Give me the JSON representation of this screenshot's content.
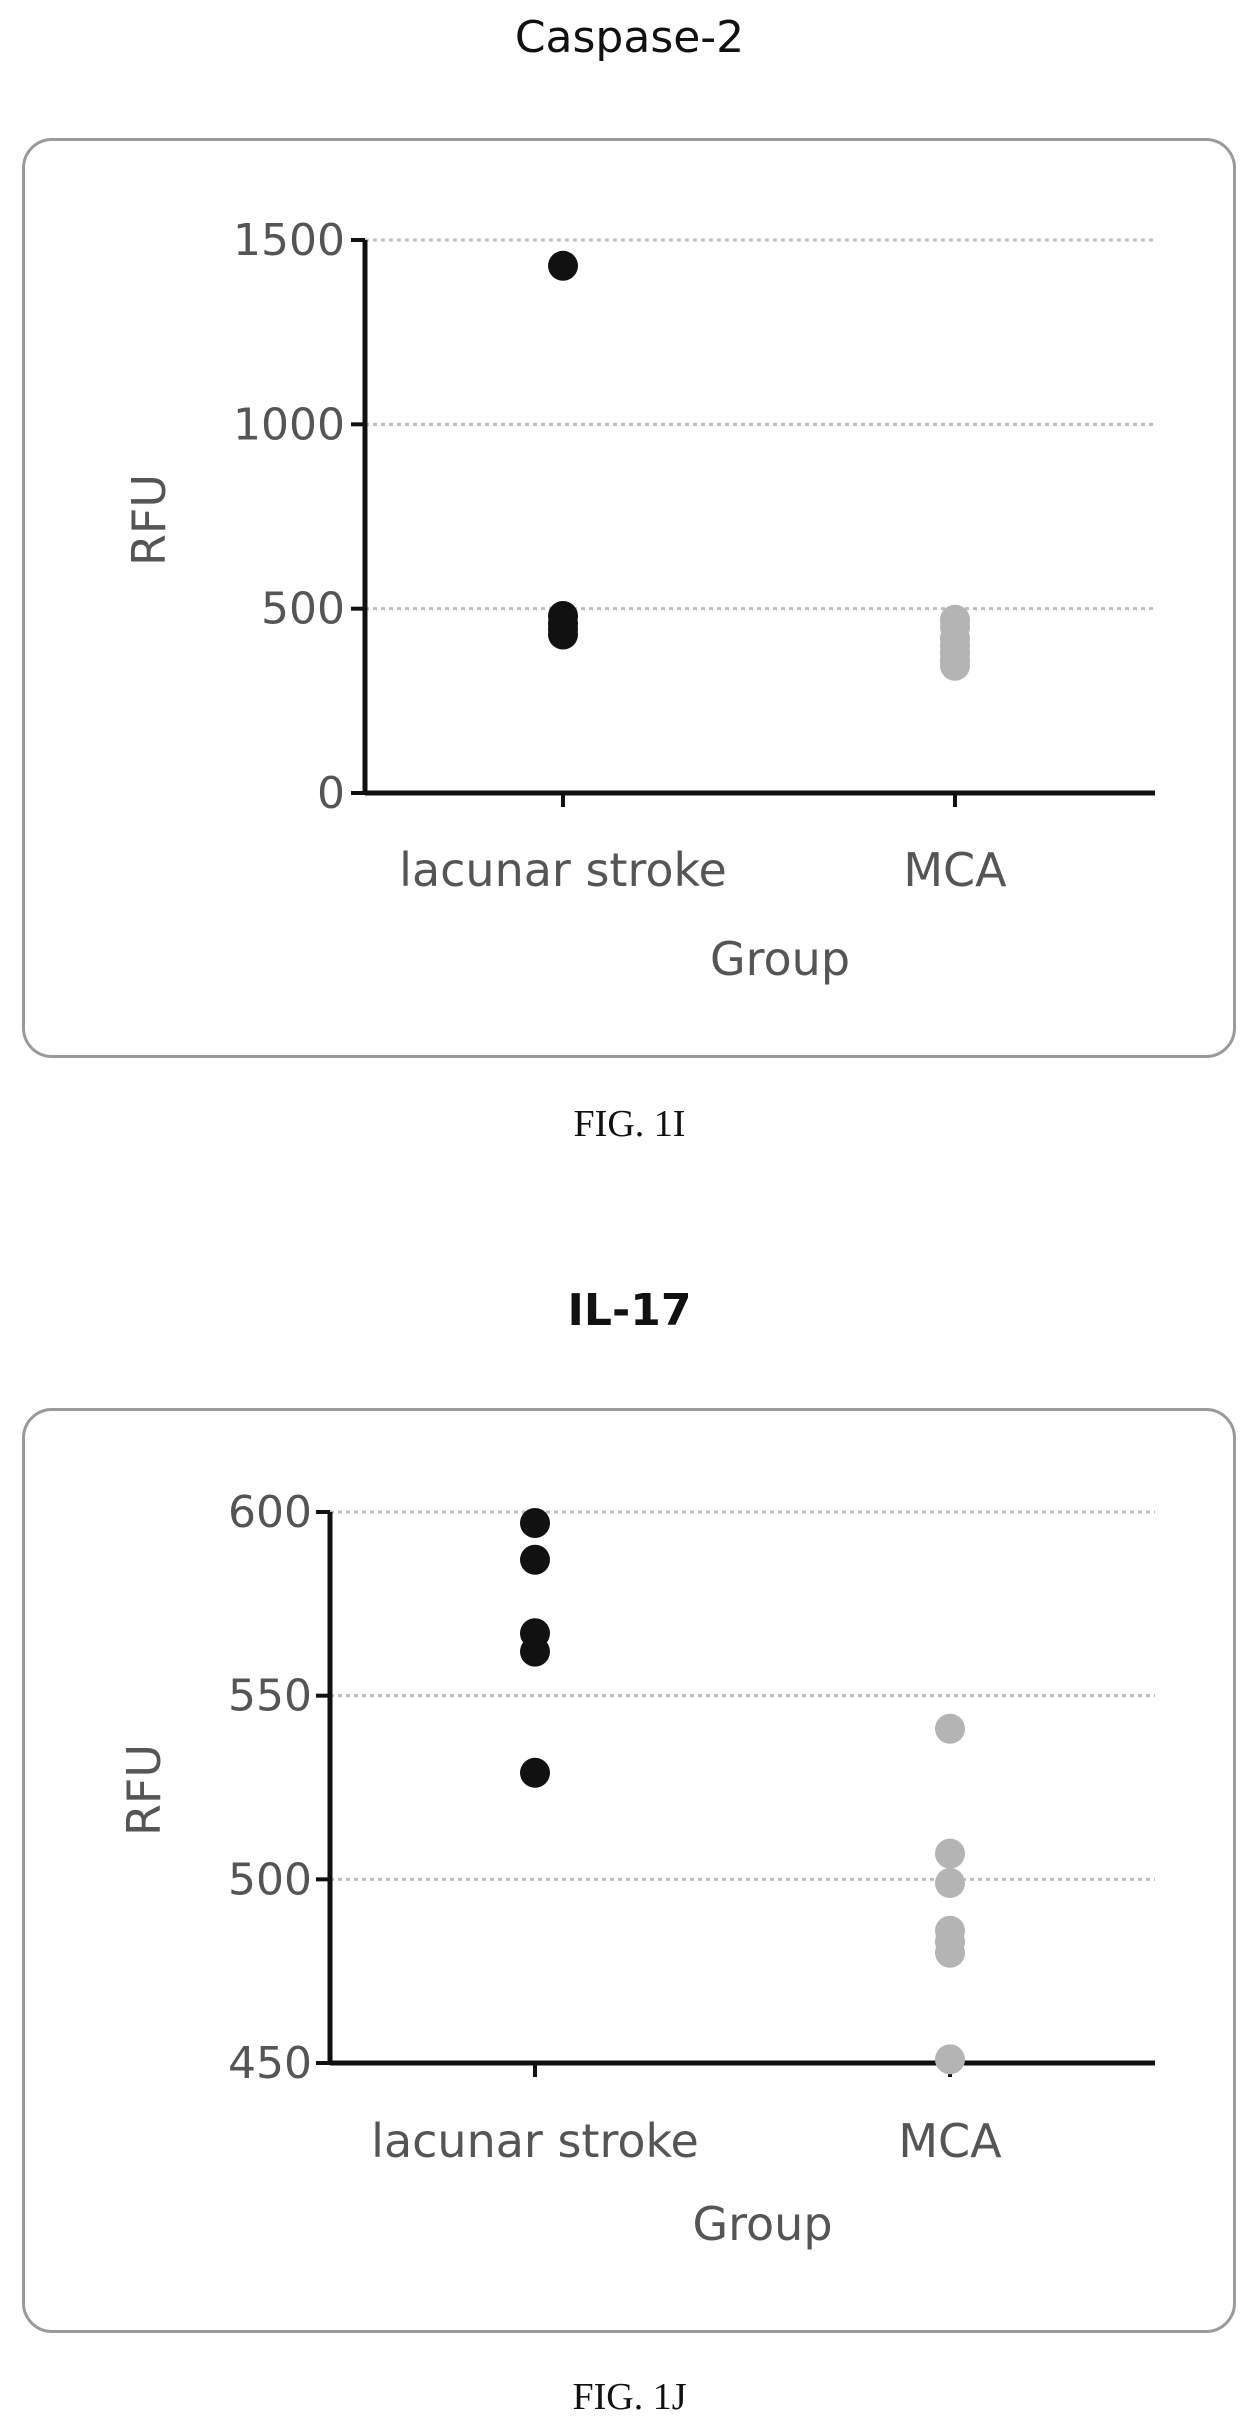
{
  "chart_data": [
    {
      "type": "scatter",
      "title": "Caspase-2",
      "caption": "FIG. 1I",
      "xlabel": "Group",
      "ylabel": "RFU",
      "categories": [
        "lacunar stroke",
        "MCA"
      ],
      "ylim": [
        0,
        1500
      ],
      "yticks": [
        0,
        500,
        1000,
        1500
      ],
      "yticklabels": [
        "0",
        "500",
        "1000",
        "1500"
      ],
      "grid": true,
      "series": [
        {
          "category": "lacunar stroke",
          "color": "#111111",
          "values": [
            1430,
            480,
            460,
            445,
            430
          ]
        },
        {
          "category": "MCA",
          "color": "#b4b4b4",
          "values": [
            470,
            450,
            420,
            400,
            380,
            360,
            345
          ]
        }
      ]
    },
    {
      "type": "scatter",
      "title": "IL-17",
      "caption": "FIG. 1J",
      "xlabel": "Group",
      "ylabel": "RFU",
      "categories": [
        "lacunar stroke",
        "MCA"
      ],
      "ylim": [
        450,
        600
      ],
      "yticks": [
        450,
        500,
        550,
        600
      ],
      "yticklabels": [
        "450",
        "500",
        "550",
        "600"
      ],
      "grid": true,
      "series": [
        {
          "category": "lacunar stroke",
          "color": "#111111",
          "values": [
            597,
            587,
            567,
            562,
            529
          ]
        },
        {
          "category": "MCA",
          "color": "#b4b4b4",
          "values": [
            541,
            507,
            499,
            486,
            483,
            480,
            451
          ]
        }
      ]
    }
  ]
}
